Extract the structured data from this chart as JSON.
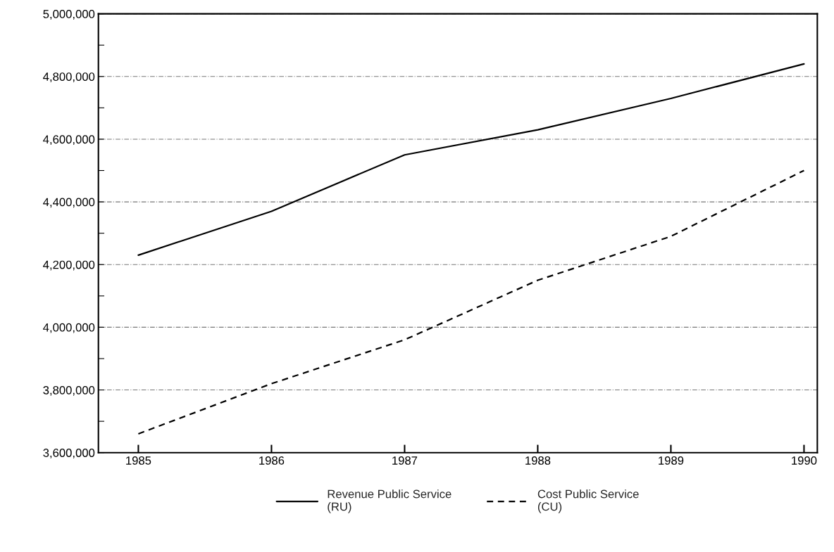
{
  "chart_data": {
    "type": "line",
    "x": [
      1985,
      1986,
      1987,
      1988,
      1989,
      1990
    ],
    "series": [
      {
        "name": "Revenue Public Service\n(RU)",
        "color": "#000000",
        "line_style": "solid",
        "values": [
          4230000,
          4370000,
          4550000,
          4630000,
          4730000,
          4840000
        ]
      },
      {
        "name": "Cost Public Service\n(CU)",
        "color": "#000000",
        "line_style": "dashed",
        "values": [
          3660000,
          3820000,
          3960000,
          4150000,
          4290000,
          4500000
        ]
      }
    ],
    "xlim": [
      1984.7,
      1990.1
    ],
    "xticks": [
      1985,
      1986,
      1987,
      1988,
      1989,
      1990
    ],
    "ylim": [
      3600000,
      5000000
    ],
    "yticks": [
      {
        "value": 3600000,
        "label": "3,600,000"
      },
      {
        "value": 3700000,
        "label": null
      },
      {
        "value": 3800000,
        "label": "3,800,000"
      },
      {
        "value": 3900000,
        "label": null
      },
      {
        "value": 4000000,
        "label": "4,000,000"
      },
      {
        "value": 4100000,
        "label": null
      },
      {
        "value": 4200000,
        "label": "4,200,000"
      },
      {
        "value": 4300000,
        "label": null
      },
      {
        "value": 4400000,
        "label": "4,400,000"
      },
      {
        "value": 4500000,
        "label": null
      },
      {
        "value": 4600000,
        "label": "4,600,000"
      },
      {
        "value": 4700000,
        "label": null
      },
      {
        "value": 4800000,
        "label": "4,800,000"
      },
      {
        "value": 4900000,
        "label": null
      },
      {
        "value": 5000000,
        "label": "5,000,000"
      }
    ],
    "grid": "y",
    "legend": "bottom",
    "marker": "none"
  }
}
